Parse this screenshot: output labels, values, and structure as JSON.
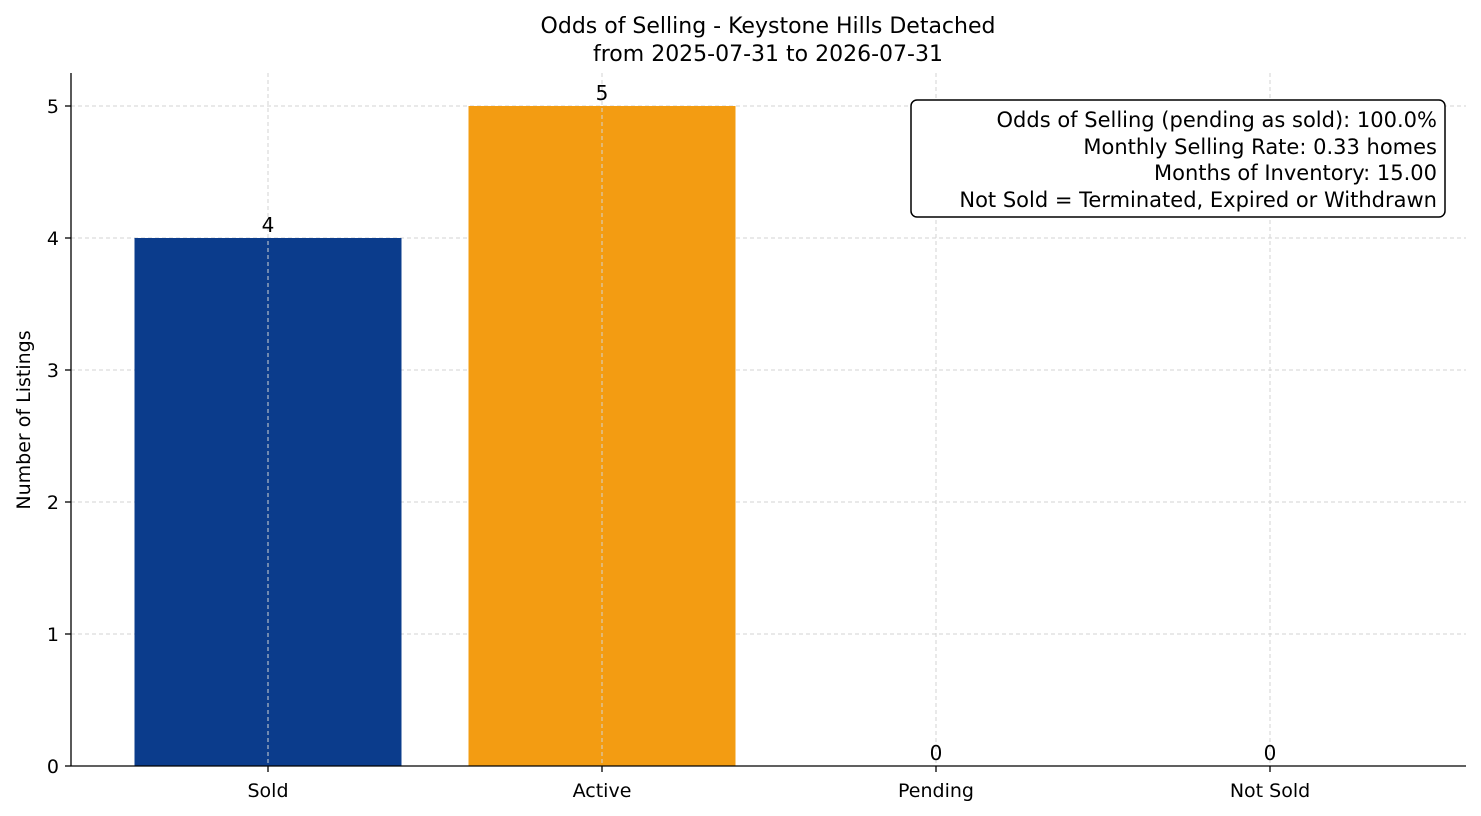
{
  "chart_data": {
    "type": "bar",
    "title": "Odds of Selling - Keystone Hills Detached",
    "subtitle": "from 2025-07-31 to 2026-07-31",
    "xlabel": "",
    "ylabel": "Number of Listings",
    "categories": [
      "Sold",
      "Active",
      "Pending",
      "Not Sold"
    ],
    "values": [
      4,
      5,
      0,
      0
    ],
    "colors": [
      "#0b3c8c",
      "#f39c12",
      "#0b3c8c",
      "#0b3c8c"
    ],
    "ylim": [
      0,
      5.25
    ],
    "yticks": [
      0,
      1,
      2,
      3,
      4,
      5
    ],
    "grid": true,
    "info_box": {
      "placement": "top-right",
      "lines": [
        "Odds of Selling (pending as sold): 100.0%",
        "Monthly Selling Rate: 0.33 homes",
        "Months of Inventory: 15.00",
        "Not Sold = Terminated, Expired or Withdrawn"
      ]
    }
  }
}
